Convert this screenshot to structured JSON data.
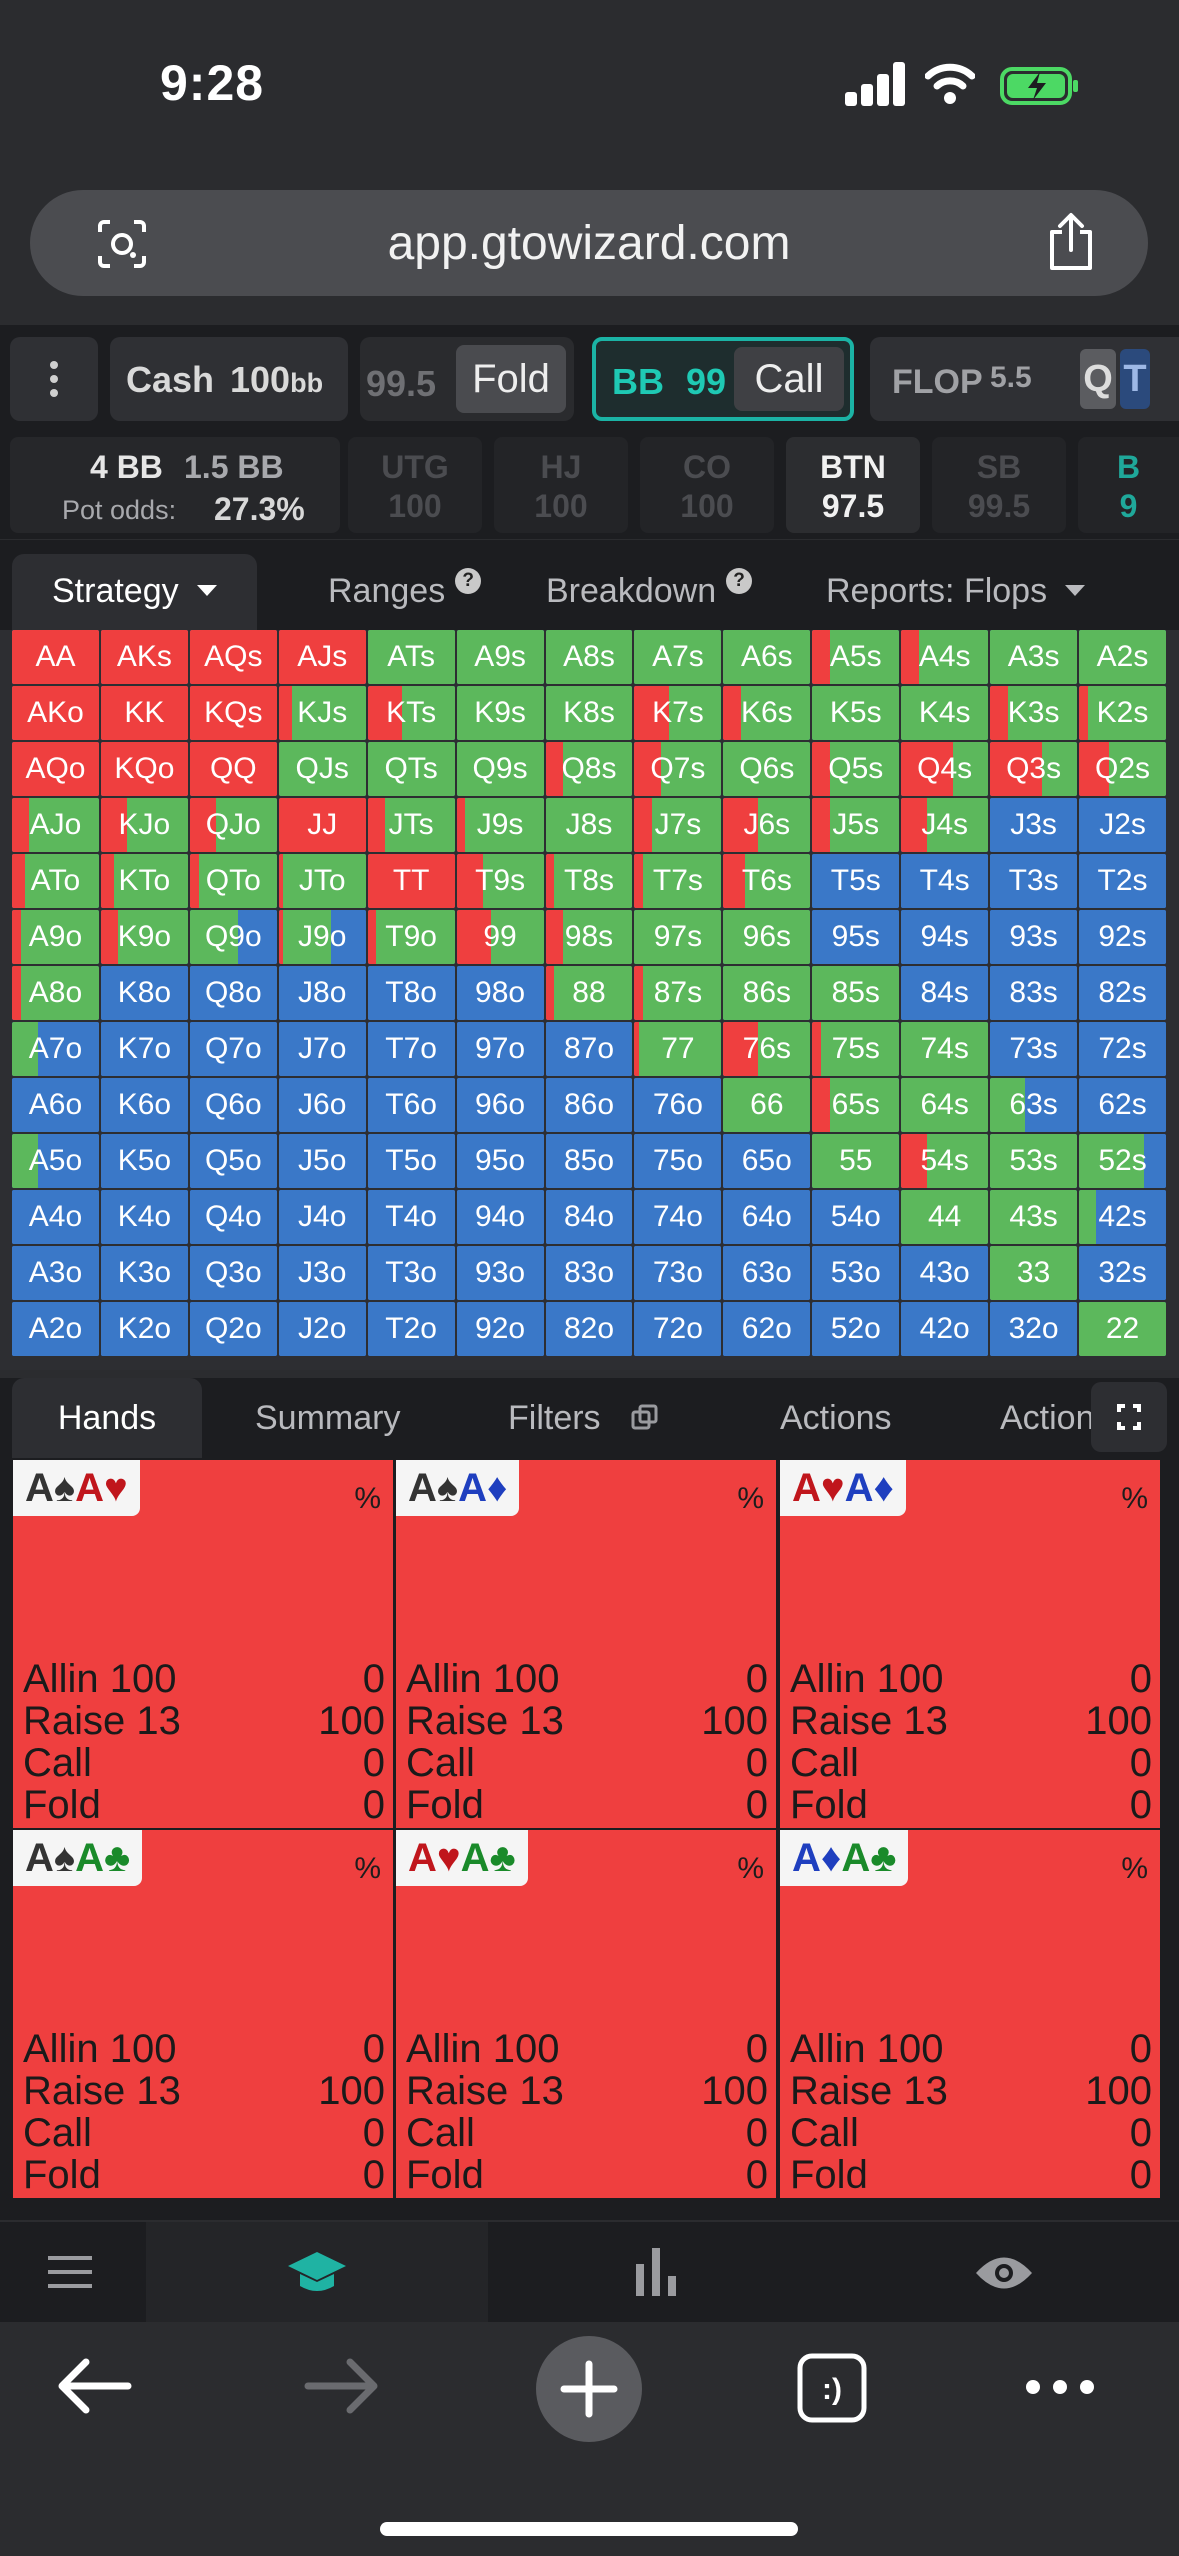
{
  "status": {
    "time": "9:28"
  },
  "browser": {
    "url": "app.gtowizard.com"
  },
  "toprow": {
    "cash_label": "Cash",
    "stack_value": "100",
    "stack_unit": "bb",
    "prev_stack": "99.5",
    "prev_action": "Fold",
    "current_position": "BB",
    "current_stack": "99",
    "current_action": "Call",
    "street": "FLOP",
    "street_pot": "5.5",
    "board_card_1": "Q",
    "board_card_2": "T"
  },
  "potrow": {
    "pot": "4 BB",
    "bet": "1.5 BB",
    "pot_odds_label": "Pot odds:",
    "pot_odds_value": "27.3%",
    "seats": [
      {
        "name": "UTG",
        "stack": "100"
      },
      {
        "name": "HJ",
        "stack": "100"
      },
      {
        "name": "CO",
        "stack": "100"
      },
      {
        "name": "BTN",
        "stack": "97.5"
      },
      {
        "name": "SB",
        "stack": "99.5"
      },
      {
        "name": "B",
        "stack": "9"
      }
    ]
  },
  "tabs": {
    "strategy": "Strategy",
    "ranges": "Ranges",
    "breakdown": "Breakdown",
    "reports": "Reports: Flops"
  },
  "colors": {
    "raise": "#ef3f3f",
    "call": "#5cb85c",
    "fold": "#3a78c8",
    "accent": "#1bb3a5"
  },
  "grid": [
    [
      "AA",
      "AKs",
      "AQs",
      "AJs",
      "ATs",
      "A9s",
      "A8s",
      "A7s",
      "A6s",
      "A5s",
      "A4s",
      "A3s",
      "A2s"
    ],
    [
      "AKo",
      "KK",
      "KQs",
      "KJs",
      "KTs",
      "K9s",
      "K8s",
      "K7s",
      "K6s",
      "K5s",
      "K4s",
      "K3s",
      "K2s"
    ],
    [
      "AQo",
      "KQo",
      "QQ",
      "QJs",
      "QTs",
      "Q9s",
      "Q8s",
      "Q7s",
      "Q6s",
      "Q5s",
      "Q4s",
      "Q3s",
      "Q2s"
    ],
    [
      "AJo",
      "KJo",
      "QJo",
      "JJ",
      "JTs",
      "J9s",
      "J8s",
      "J7s",
      "J6s",
      "J5s",
      "J4s",
      "J3s",
      "J2s"
    ],
    [
      "ATo",
      "KTo",
      "QTo",
      "JTo",
      "TT",
      "T9s",
      "T8s",
      "T7s",
      "T6s",
      "T5s",
      "T4s",
      "T3s",
      "T2s"
    ],
    [
      "A9o",
      "K9o",
      "Q9o",
      "J9o",
      "T9o",
      "99",
      "98s",
      "97s",
      "96s",
      "95s",
      "94s",
      "93s",
      "92s"
    ],
    [
      "A8o",
      "K8o",
      "Q8o",
      "J8o",
      "T8o",
      "98o",
      "88",
      "87s",
      "86s",
      "85s",
      "84s",
      "83s",
      "82s"
    ],
    [
      "A7o",
      "K7o",
      "Q7o",
      "J7o",
      "T7o",
      "97o",
      "87o",
      "77",
      "76s",
      "75s",
      "74s",
      "73s",
      "72s"
    ],
    [
      "A6o",
      "K6o",
      "Q6o",
      "J6o",
      "T6o",
      "96o",
      "86o",
      "76o",
      "66",
      "65s",
      "64s",
      "63s",
      "62s"
    ],
    [
      "A5o",
      "K5o",
      "Q5o",
      "J5o",
      "T5o",
      "95o",
      "85o",
      "75o",
      "65o",
      "55",
      "54s",
      "53s",
      "52s"
    ],
    [
      "A4o",
      "K4o",
      "Q4o",
      "J4o",
      "T4o",
      "94o",
      "84o",
      "74o",
      "64o",
      "54o",
      "44",
      "43s",
      "42s"
    ],
    [
      "A3o",
      "K3o",
      "Q3o",
      "J3o",
      "T3o",
      "93o",
      "83o",
      "73o",
      "63o",
      "53o",
      "43o",
      "33",
      "32s"
    ],
    [
      "A2o",
      "K2o",
      "Q2o",
      "J2o",
      "T2o",
      "92o",
      "82o",
      "72o",
      "62o",
      "52o",
      "42o",
      "32o",
      "22"
    ]
  ],
  "grid_mix": [
    [
      [
        1,
        0,
        0
      ],
      [
        1,
        0,
        0
      ],
      [
        1,
        0,
        0
      ],
      [
        1,
        0,
        0
      ],
      [
        0,
        1,
        0
      ],
      [
        0,
        1,
        0
      ],
      [
        0,
        1,
        0
      ],
      [
        0,
        1,
        0
      ],
      [
        0,
        1,
        0
      ],
      [
        0.2,
        0.8,
        0
      ],
      [
        0.2,
        0.8,
        0
      ],
      [
        0,
        1,
        0
      ],
      [
        0,
        1,
        0
      ]
    ],
    [
      [
        1,
        0,
        0
      ],
      [
        1,
        0,
        0
      ],
      [
        1,
        0,
        0
      ],
      [
        0.15,
        0.85,
        0
      ],
      [
        0.4,
        0.6,
        0
      ],
      [
        0,
        1,
        0
      ],
      [
        0,
        1,
        0
      ],
      [
        0.4,
        0.6,
        0
      ],
      [
        0.2,
        0.8,
        0
      ],
      [
        0,
        1,
        0
      ],
      [
        0,
        1,
        0
      ],
      [
        0.2,
        0.8,
        0
      ],
      [
        0.1,
        0.9,
        0
      ]
    ],
    [
      [
        1,
        0,
        0
      ],
      [
        1,
        0,
        0
      ],
      [
        1,
        0,
        0
      ],
      [
        0,
        1,
        0
      ],
      [
        0,
        1,
        0
      ],
      [
        0,
        1,
        0
      ],
      [
        0.2,
        0.8,
        0
      ],
      [
        0.3,
        0.7,
        0
      ],
      [
        0,
        1,
        0
      ],
      [
        0.2,
        0.8,
        0
      ],
      [
        0.6,
        0.4,
        0
      ],
      [
        0.6,
        0.4,
        0
      ],
      [
        0.35,
        0.65,
        0
      ]
    ],
    [
      [
        0.2,
        0.8,
        0
      ],
      [
        0.3,
        0.7,
        0
      ],
      [
        0.3,
        0.7,
        0
      ],
      [
        1,
        0,
        0
      ],
      [
        0.2,
        0.8,
        0
      ],
      [
        0.1,
        0.9,
        0
      ],
      [
        0,
        1,
        0
      ],
      [
        0.2,
        0.8,
        0
      ],
      [
        0.4,
        0.6,
        0
      ],
      [
        0.2,
        0.8,
        0
      ],
      [
        0.3,
        0.7,
        0
      ],
      [
        0,
        0,
        1
      ],
      [
        0,
        0,
        1
      ]
    ],
    [
      [
        0.15,
        0.85,
        0
      ],
      [
        0.15,
        0.85,
        0
      ],
      [
        0.1,
        0.9,
        0
      ],
      [
        0.05,
        0.95,
        0
      ],
      [
        1,
        0,
        0
      ],
      [
        0.3,
        0.7,
        0
      ],
      [
        0.1,
        0.9,
        0
      ],
      [
        0.1,
        0.9,
        0
      ],
      [
        0.25,
        0.75,
        0
      ],
      [
        0,
        0,
        1
      ],
      [
        0,
        0,
        1
      ],
      [
        0,
        0,
        1
      ],
      [
        0,
        0,
        1
      ]
    ],
    [
      [
        0.1,
        0.9,
        0
      ],
      [
        0.2,
        0.8,
        0
      ],
      [
        0,
        0.55,
        0.45
      ],
      [
        0.05,
        0.55,
        0.4
      ],
      [
        0.1,
        0.9,
        0
      ],
      [
        0.4,
        0.6,
        0
      ],
      [
        0.2,
        0.8,
        0
      ],
      [
        0,
        1,
        0
      ],
      [
        0,
        1,
        0
      ],
      [
        0,
        0,
        1
      ],
      [
        0,
        0,
        1
      ],
      [
        0,
        0,
        1
      ],
      [
        0,
        0,
        1
      ]
    ],
    [
      [
        0.1,
        0.9,
        0
      ],
      [
        0,
        0,
        1
      ],
      [
        0,
        0,
        1
      ],
      [
        0,
        0,
        1
      ],
      [
        0,
        0,
        1
      ],
      [
        0,
        0,
        1
      ],
      [
        0.1,
        0.9,
        0
      ],
      [
        0.1,
        0.9,
        0
      ],
      [
        0,
        1,
        0
      ],
      [
        0,
        1,
        0
      ],
      [
        0,
        0,
        1
      ],
      [
        0,
        0,
        1
      ],
      [
        0,
        0,
        1
      ]
    ],
    [
      [
        0,
        0.3,
        0.7
      ],
      [
        0,
        0,
        1
      ],
      [
        0,
        0,
        1
      ],
      [
        0,
        0,
        1
      ],
      [
        0,
        0,
        1
      ],
      [
        0,
        0,
        1
      ],
      [
        0,
        0,
        1
      ],
      [
        0.05,
        0.95,
        0
      ],
      [
        0.4,
        0.6,
        0
      ],
      [
        0.1,
        0.9,
        0
      ],
      [
        0,
        1,
        0
      ],
      [
        0,
        0,
        1
      ],
      [
        0,
        0,
        1
      ]
    ],
    [
      [
        0,
        0,
        1
      ],
      [
        0,
        0,
        1
      ],
      [
        0,
        0,
        1
      ],
      [
        0,
        0,
        1
      ],
      [
        0,
        0,
        1
      ],
      [
        0,
        0,
        1
      ],
      [
        0,
        0,
        1
      ],
      [
        0,
        0,
        1
      ],
      [
        0,
        1,
        0
      ],
      [
        0.2,
        0.8,
        0
      ],
      [
        0,
        1,
        0
      ],
      [
        0,
        0.4,
        0.6
      ],
      [
        0,
        0,
        1
      ]
    ],
    [
      [
        0,
        0.3,
        0.7
      ],
      [
        0,
        0,
        1
      ],
      [
        0,
        0,
        1
      ],
      [
        0,
        0,
        1
      ],
      [
        0,
        0,
        1
      ],
      [
        0,
        0,
        1
      ],
      [
        0,
        0,
        1
      ],
      [
        0,
        0,
        1
      ],
      [
        0,
        0,
        1
      ],
      [
        0,
        1,
        0
      ],
      [
        0.3,
        0.7,
        0
      ],
      [
        0,
        1,
        0
      ],
      [
        0,
        0.75,
        0.25
      ]
    ],
    [
      [
        0,
        0,
        1
      ],
      [
        0,
        0,
        1
      ],
      [
        0,
        0,
        1
      ],
      [
        0,
        0,
        1
      ],
      [
        0,
        0,
        1
      ],
      [
        0,
        0,
        1
      ],
      [
        0,
        0,
        1
      ],
      [
        0,
        0,
        1
      ],
      [
        0,
        0,
        1
      ],
      [
        0,
        0,
        1
      ],
      [
        0,
        1,
        0
      ],
      [
        0,
        1,
        0
      ],
      [
        0,
        0.2,
        0.8
      ]
    ],
    [
      [
        0,
        0,
        1
      ],
      [
        0,
        0,
        1
      ],
      [
        0,
        0,
        1
      ],
      [
        0,
        0,
        1
      ],
      [
        0,
        0,
        1
      ],
      [
        0,
        0,
        1
      ],
      [
        0,
        0,
        1
      ],
      [
        0,
        0,
        1
      ],
      [
        0,
        0,
        1
      ],
      [
        0,
        0,
        1
      ],
      [
        0,
        0,
        1
      ],
      [
        0,
        1,
        0
      ],
      [
        0,
        0,
        1
      ]
    ],
    [
      [
        0,
        0,
        1
      ],
      [
        0,
        0,
        1
      ],
      [
        0,
        0,
        1
      ],
      [
        0,
        0,
        1
      ],
      [
        0,
        0,
        1
      ],
      [
        0,
        0,
        1
      ],
      [
        0,
        0,
        1
      ],
      [
        0,
        0,
        1
      ],
      [
        0,
        0,
        1
      ],
      [
        0,
        0,
        1
      ],
      [
        0,
        0,
        1
      ],
      [
        0,
        0,
        1
      ],
      [
        0,
        1,
        0
      ]
    ]
  ],
  "bottom_tabs": {
    "hands": "Hands",
    "summary": "Summary",
    "filters": "Filters",
    "actions": "Actions",
    "actions2": "Action"
  },
  "hand_cards": [
    {
      "c1_rank": "A",
      "c1_suit": "♠",
      "c1_color": "#333333",
      "c2_rank": "A",
      "c2_suit": "♥",
      "c2_color": "#c0161c"
    },
    {
      "c1_rank": "A",
      "c1_suit": "♠",
      "c1_color": "#333333",
      "c2_rank": "A",
      "c2_suit": "♦",
      "c2_color": "#1f3fbf"
    },
    {
      "c1_rank": "A",
      "c1_suit": "♥",
      "c1_color": "#c0161c",
      "c2_rank": "A",
      "c2_suit": "♦",
      "c2_color": "#1f3fbf"
    },
    {
      "c1_rank": "A",
      "c1_suit": "♠",
      "c1_color": "#333333",
      "c2_rank": "A",
      "c2_suit": "♣",
      "c2_color": "#1a8a2a"
    },
    {
      "c1_rank": "A",
      "c1_suit": "♥",
      "c1_color": "#c0161c",
      "c2_rank": "A",
      "c2_suit": "♣",
      "c2_color": "#1a8a2a"
    },
    {
      "c1_rank": "A",
      "c1_suit": "♦",
      "c1_color": "#1f3fbf",
      "c2_rank": "A",
      "c2_suit": "♣",
      "c2_color": "#1a8a2a"
    }
  ],
  "hand_pct_label": "%",
  "hand_actions": [
    {
      "label": "Allin 100",
      "value": "0"
    },
    {
      "label": "Raise 13",
      "value": "100"
    },
    {
      "label": "Call",
      "value": "0"
    },
    {
      "label": "Fold",
      "value": "0"
    }
  ],
  "icons": {
    "nav": [
      "menu-icon",
      "study-cap-icon",
      "bar-chart-icon",
      "eye-icon"
    ],
    "browser": [
      "back-arrow-icon",
      "forward-arrow-icon",
      "plus-icon",
      "tabs-icon",
      "more-icon"
    ]
  }
}
